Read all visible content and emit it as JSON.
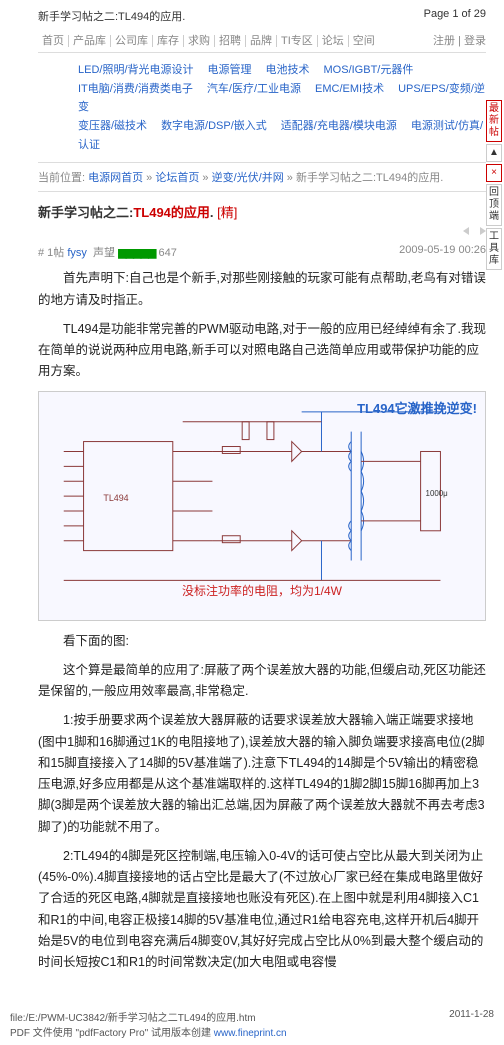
{
  "header": {
    "title": "新手学习帖之二:TL494的应用.",
    "page_indicator": "Page 1 of 29"
  },
  "nav_main": [
    "首页",
    "产品库",
    "公司库",
    "库存",
    "求购",
    "招聘",
    "品牌",
    "TI专区",
    "论坛",
    "空间"
  ],
  "nav_right": "注册 | 登录",
  "sub_nav_rows": [
    [
      "LED/照明/背光电源设计",
      "电源管理",
      "电池技术",
      "MOS/IGBT/元器件"
    ],
    [
      "IT电脑/消费/消费类电子",
      "汽车/医疗/工业电源",
      "EMC/EMI技术",
      "UPS/EPS/变频/逆变"
    ],
    [
      "变压器/磁技术",
      "数字电源/DSP/嵌入式",
      "适配器/充电器/模块电源",
      "电源测试/仿真/认证"
    ]
  ],
  "breadcrumb": {
    "label": "当前位置:",
    "items": [
      "电源网首页",
      "论坛首页",
      "逆变/光伏/并网",
      "新手学习帖之二:TL494的应用."
    ],
    "sep": " » "
  },
  "post": {
    "title_prefix": "新手学习帖之二:",
    "title_highlight": "TL494的应用",
    "title_suffix": ". ",
    "jing": "[精]",
    "floor": "# 1帖",
    "user": "fysy",
    "level_label": "声望",
    "level_bars": "▆▆▆▆▆",
    "level_num": "647",
    "time": "2009-05-19 00:26"
  },
  "content": {
    "p1": "首先声明下:自己也是个新手,对那些刚接触的玩家可能有点帮助,老鸟有对错误的地方请及时指正。",
    "p2": "TL494是功能非常完善的PWM驱动电路,对于一般的应用已经绰绰有余了.我现在简单的说说两种应用电路,新手可以对照电路自己选简单应用或带保护功能的应用方案。",
    "diagram_title": "TL494它激推挽逆变!",
    "diagram_note": "没标注功率的电阻，均为1/4W",
    "p3": "看下面的图:",
    "p4": "这个算是最简单的应用了:屏蔽了两个误差放大器的功能,但缓启动,死区功能还是保留的,一般应用效率最高,非常稳定.",
    "p5": "1:按手册要求两个误差放大器屏蔽的话要求误差放大器输入端正端要求接地(图中1脚和16脚通过1K的电阻接地了),误差放大器的输入脚负端要求接高电位(2脚和15脚直接接入了14脚的5V基准端了).注意下TL494的14脚是个5V输出的精密稳压电源,好多应用都是从这个基准端取样的.这样TL494的1脚2脚15脚16脚再加上3脚(3脚是两个误差放大器的输出汇总端,因为屏蔽了两个误差放大器就不再去考虑3脚了)的功能就不用了。",
    "p6": "2:TL494的4脚是死区控制端,电压输入0-4V的话可使占空比从最大到关闭为止(45%-0%).4脚直接接地的话占空比是最大了(不过放心厂家已经在集成电路里做好了合适的死区电路,4脚就是直接接地也账没有死区).在上图中就是利用4脚接入C1和R1的中间,电容正极接14脚的5V基准电位,通过R1给电容充电,这样开机后4脚开始是5V的电位到电容充满后4脚变0V,其好好完成占空比从0%到最大整个缓启动的时间长短按C1和R1的时间常数决定(加大电阻或电容慢"
  },
  "side_tabs": [
    {
      "label": "最新帖",
      "color": "red"
    },
    {
      "label": "▲",
      "color": ""
    },
    {
      "label": "×",
      "color": "red"
    },
    {
      "label": "回顶端",
      "color": ""
    },
    {
      "label": "工具库",
      "color": ""
    }
  ],
  "footer": {
    "left_path": "file:/E:/PWM-UC3842/新手学习帖之二TL494的应用.htm",
    "pdf_line": "PDF 文件使用 \"pdfFactory Pro\" 试用版本创建 ",
    "pdf_link": "www.fineprint.cn",
    "date": "2011-1-28"
  },
  "colors": {
    "link": "#2864c8",
    "accent_red": "#c00",
    "text": "#333",
    "muted": "#888",
    "border": "#ddd",
    "circuit": "#8a3838",
    "diagram_bg": "#f8f8ff"
  }
}
